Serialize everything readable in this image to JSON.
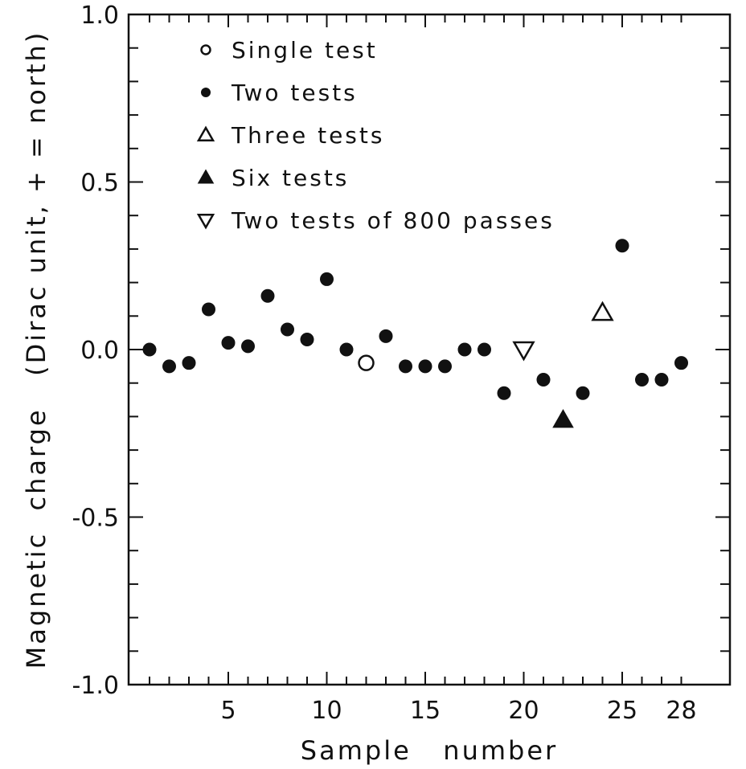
{
  "chart_data": {
    "type": "scatter",
    "title": "",
    "xlabel": "Sample   number",
    "ylabel": "Magnetic  charge   (Dirac unit, + = north)",
    "xlim": [
      0,
      28.5
    ],
    "ylim": [
      -1.0,
      1.0
    ],
    "grid": false,
    "legend_position": "top-left",
    "x_ticks": [
      5,
      10,
      15,
      20,
      25,
      28
    ],
    "x_tick_labels": [
      "5",
      "10",
      "15",
      "20",
      "25",
      "28"
    ],
    "y_ticks": [
      1.0,
      0.5,
      0.0,
      -0.5,
      -1.0
    ],
    "y_tick_labels": [
      "1.0",
      "0.5",
      "0.0",
      "-0.5",
      "-1.0"
    ],
    "series": [
      {
        "name": "Single test",
        "marker": "open-circle",
        "points": [
          {
            "x": 12,
            "y": -0.04
          }
        ]
      },
      {
        "name": "Two tests",
        "marker": "filled-circle",
        "points": [
          {
            "x": 1,
            "y": 0.0
          },
          {
            "x": 2,
            "y": -0.05
          },
          {
            "x": 3,
            "y": -0.04
          },
          {
            "x": 4,
            "y": 0.12
          },
          {
            "x": 5,
            "y": 0.02
          },
          {
            "x": 6,
            "y": 0.01
          },
          {
            "x": 7,
            "y": 0.16
          },
          {
            "x": 8,
            "y": 0.06
          },
          {
            "x": 9,
            "y": 0.03
          },
          {
            "x": 10,
            "y": 0.21
          },
          {
            "x": 11,
            "y": 0.0
          },
          {
            "x": 13,
            "y": 0.04
          },
          {
            "x": 14,
            "y": -0.05
          },
          {
            "x": 15,
            "y": -0.05
          },
          {
            "x": 16,
            "y": -0.05
          },
          {
            "x": 17,
            "y": 0.0
          },
          {
            "x": 18,
            "y": 0.0
          },
          {
            "x": 19,
            "y": -0.13
          },
          {
            "x": 21,
            "y": -0.09
          },
          {
            "x": 23,
            "y": -0.13
          },
          {
            "x": 25,
            "y": 0.31
          },
          {
            "x": 26,
            "y": -0.09
          },
          {
            "x": 27,
            "y": -0.09
          },
          {
            "x": 28,
            "y": -0.04
          }
        ]
      },
      {
        "name": "Three tests",
        "marker": "open-triangle-up",
        "points": [
          {
            "x": 24,
            "y": 0.11
          }
        ]
      },
      {
        "name": "Six tests",
        "marker": "filled-triangle-up",
        "points": [
          {
            "x": 22,
            "y": -0.21
          }
        ]
      },
      {
        "name": "Two tests of 800 passes",
        "marker": "open-triangle-down",
        "points": [
          {
            "x": 20,
            "y": 0.0
          }
        ]
      }
    ]
  }
}
